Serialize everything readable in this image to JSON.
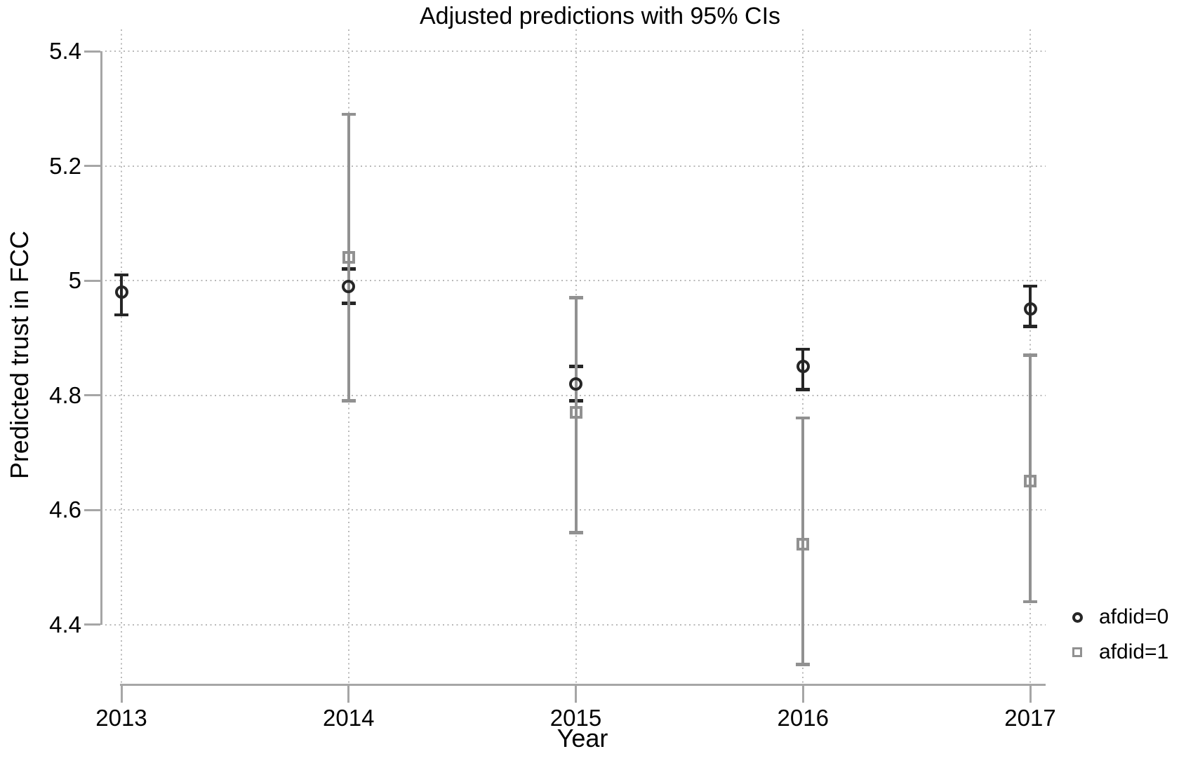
{
  "chart_data": {
    "type": "scatter",
    "title": "Adjusted predictions with 95% CIs",
    "xlabel": "Year",
    "ylabel": "Predicted trust in FCC",
    "x_categories": [
      "2013",
      "2014",
      "2015",
      "2016",
      "2017"
    ],
    "y_tick_values": [
      5.4,
      5.2,
      5.0,
      4.8,
      4.6,
      4.4
    ],
    "y_tick_labels": [
      "5.4",
      "5.2",
      "5",
      "4.8",
      "4.6",
      "4.4"
    ],
    "axis_range_y": [
      4.29,
      5.44
    ],
    "grid": "dotted, both axes",
    "legend_position": "bottom-right",
    "error_bars": "95% confidence intervals with caps",
    "series": [
      {
        "name": "afdid=0",
        "marker": "circle",
        "color": "#262626",
        "points": [
          {
            "x": "2013",
            "y": 4.98,
            "ci_low": 4.94,
            "ci_high": 5.01
          },
          {
            "x": "2014",
            "y": 4.99,
            "ci_low": 4.96,
            "ci_high": 5.02
          },
          {
            "x": "2015",
            "y": 4.82,
            "ci_low": 4.79,
            "ci_high": 4.85
          },
          {
            "x": "2016",
            "y": 4.85,
            "ci_low": 4.81,
            "ci_high": 4.88
          },
          {
            "x": "2017",
            "y": 4.95,
            "ci_low": 4.92,
            "ci_high": 4.99
          }
        ]
      },
      {
        "name": "afdid=1",
        "marker": "square",
        "color": "#919191",
        "points": [
          {
            "x": "2014",
            "y": 5.04,
            "ci_low": 4.79,
            "ci_high": 5.29
          },
          {
            "x": "2015",
            "y": 4.77,
            "ci_low": 4.56,
            "ci_high": 4.97
          },
          {
            "x": "2016",
            "y": 4.54,
            "ci_low": 4.33,
            "ci_high": 4.76
          },
          {
            "x": "2017",
            "y": 4.65,
            "ci_low": 4.44,
            "ci_high": 4.87
          }
        ]
      }
    ]
  },
  "colors": {
    "background": "#ffffff",
    "axis": "#a6a6a6",
    "grid": "#b9b9b9",
    "text": "#000000",
    "series_afdid0": "#262626",
    "series_afdid1": "#919191"
  }
}
